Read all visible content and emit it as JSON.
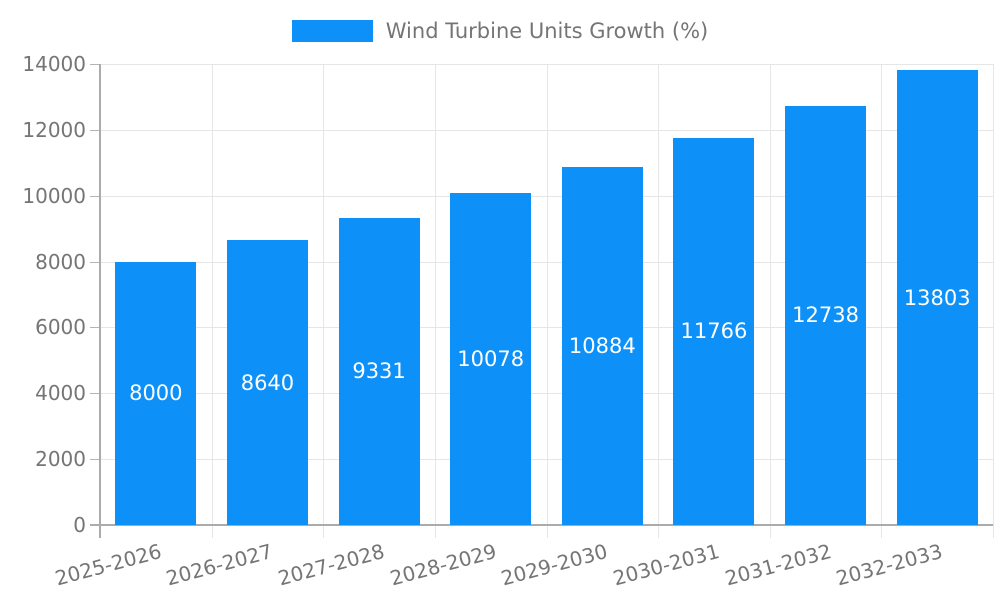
{
  "legend": {
    "label": "Wind Turbine Units Growth (%)"
  },
  "chart_data": {
    "type": "bar",
    "title": "Wind Turbine Units Growth (%)",
    "categories": [
      "2025-2026",
      "2026-2027",
      "2027-2028",
      "2028-2029",
      "2029-2030",
      "2030-2031",
      "2031-2032",
      "2032-2033"
    ],
    "values": [
      8000,
      8640,
      9331,
      10078,
      10884,
      11766,
      12738,
      13803
    ],
    "series": [
      {
        "name": "Wind Turbine Units Growth (%)",
        "values": [
          8000,
          8640,
          9331,
          10078,
          10884,
          11766,
          12738,
          13803
        ]
      }
    ],
    "xlabel": "",
    "ylabel": "",
    "ylim": [
      0,
      14000
    ],
    "yticks": [
      0,
      2000,
      4000,
      6000,
      8000,
      10000,
      12000,
      14000
    ],
    "grid": true,
    "legend_position": "top-center",
    "colors": {
      "bar": "#0d90f8",
      "bar_value_text": "#ffffff",
      "axis_text": "#757575",
      "gridline": "#e6e6e6",
      "axis_line": "#ababab",
      "background": "#ffffff"
    }
  }
}
